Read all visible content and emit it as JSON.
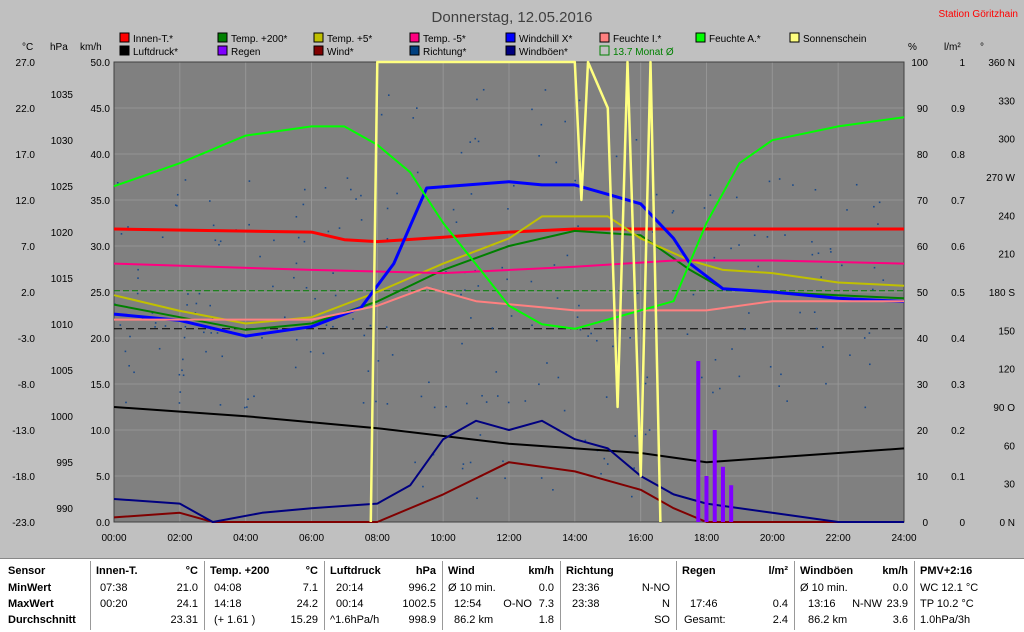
{
  "title": "Donnerstag, 12.05.2016",
  "station": "Station Göritzhain",
  "colors": {
    "bg": "#c0c0c0",
    "plot": "#808080",
    "innen": "#ff0000",
    "t200": "#008000",
    "t5": "#c0c000",
    "tm5": "#ff0080",
    "windchill": "#0000ff",
    "feuchteI": "#ff8080",
    "feuchteA": "#00ff00",
    "sonne": "#ffff80",
    "luftdruck": "#000000",
    "regen": "#8000ff",
    "wind": "#800000",
    "richtung": "#004080",
    "boeen": "#000080",
    "monat": "#008000"
  },
  "legend": [
    {
      "label": "Innen-T.*",
      "color": "#ff0000"
    },
    {
      "label": "Temp. +200*",
      "color": "#008000"
    },
    {
      "label": "Temp. +5*",
      "color": "#c0c000"
    },
    {
      "label": "Temp. -5*",
      "color": "#ff0080"
    },
    {
      "label": "Windchill X*",
      "color": "#0000ff"
    },
    {
      "label": "Feuchte I.*",
      "color": "#ff8080"
    },
    {
      "label": "Feuchte A.*",
      "color": "#00ff00"
    },
    {
      "label": "Sonnenschein",
      "color": "#ffff80"
    },
    {
      "label": "Luftdruck*",
      "color": "#000000"
    },
    {
      "label": "Regen",
      "color": "#8000ff"
    },
    {
      "label": "Wind*",
      "color": "#800000"
    },
    {
      "label": "Richtung*",
      "color": "#004080"
    },
    {
      "label": "Windböen*",
      "color": "#000080"
    },
    {
      "label": "13.7 Monat Ø",
      "color": "#008000"
    }
  ],
  "axes": {
    "units": {
      "c": "°C",
      "hpa": "hPa",
      "kmh": "km/h",
      "pct": "%",
      "lm2": "l/m²",
      "deg": "°"
    },
    "celsius": [
      "27.0",
      "22.0",
      "17.0",
      "12.0",
      "7.0",
      "2.0",
      "-3.0",
      "-8.0",
      "-13.0",
      "-18.0",
      "-23.0"
    ],
    "hpa": [
      "1035",
      "1030",
      "1025",
      "1020",
      "1015",
      "1010",
      "1005",
      "1000",
      "995",
      "990"
    ],
    "kmh": [
      "50.0",
      "45.0",
      "40.0",
      "35.0",
      "30.0",
      "25.0",
      "20.0",
      "15.0",
      "10.0",
      "5.0",
      "0.0"
    ],
    "pct": [
      "100",
      "90",
      "80",
      "70",
      "60",
      "50",
      "40",
      "30",
      "20",
      "10",
      "0"
    ],
    "lm2": [
      "1",
      "0.9",
      "0.8",
      "0.7",
      "0.6",
      "0.5",
      "0.4",
      "0.3",
      "0.2",
      "0.1",
      "0"
    ],
    "deg": [
      "360 N",
      "330",
      "300",
      "270 W",
      "240",
      "210",
      "180 S",
      "150",
      "120",
      "90 O",
      "60",
      "30",
      "0 N"
    ],
    "time": [
      "00:00",
      "02:00",
      "04:00",
      "06:00",
      "08:00",
      "10:00",
      "12:00",
      "14:00",
      "16:00",
      "18:00",
      "20:00",
      "22:00",
      "24:00"
    ]
  },
  "chart_data": {
    "type": "line",
    "title": "Donnerstag, 12.05.2016",
    "x_unit": "hour of day",
    "xlim": [
      0,
      24
    ],
    "series": [
      {
        "name": "Innen-T.*",
        "unit": "°C",
        "color": "#ff0000",
        "points": [
          [
            0,
            23.5
          ],
          [
            6,
            23.0
          ],
          [
            7,
            21.8
          ],
          [
            8,
            21.5
          ],
          [
            10,
            22.2
          ],
          [
            12,
            23.0
          ],
          [
            14,
            23.5
          ],
          [
            16,
            23.5
          ],
          [
            18,
            23.5
          ],
          [
            24,
            23.5
          ]
        ]
      },
      {
        "name": "Temp. +200*",
        "unit": "°C",
        "color": "#008000",
        "points": [
          [
            0,
            11.5
          ],
          [
            2,
            9.5
          ],
          [
            4,
            7.5
          ],
          [
            6,
            8.5
          ],
          [
            8,
            12
          ],
          [
            10,
            17
          ],
          [
            12,
            20.8
          ],
          [
            14,
            23.2
          ],
          [
            16,
            22.5
          ],
          [
            17.5,
            17
          ],
          [
            18.5,
            14
          ],
          [
            20,
            13.5
          ],
          [
            22,
            13
          ],
          [
            24,
            12.5
          ]
        ]
      },
      {
        "name": "Temp. +5*",
        "unit": "°C",
        "color": "#c0c000",
        "points": [
          [
            0,
            13
          ],
          [
            2,
            10.5
          ],
          [
            4,
            8.5
          ],
          [
            6,
            9.5
          ],
          [
            8,
            13.5
          ],
          [
            10,
            18
          ],
          [
            12,
            22
          ],
          [
            13,
            25.5
          ],
          [
            15,
            25.5
          ],
          [
            16,
            22
          ],
          [
            17.5,
            18.5
          ],
          [
            18.5,
            17
          ],
          [
            20,
            16.5
          ],
          [
            22,
            15
          ],
          [
            24,
            14.5
          ]
        ]
      },
      {
        "name": "Temp. -5*",
        "unit": "°C",
        "color": "#ff0080",
        "points": [
          [
            0,
            18
          ],
          [
            6,
            17
          ],
          [
            10,
            16.5
          ],
          [
            14,
            17.5
          ],
          [
            17,
            18.5
          ],
          [
            20,
            18.5
          ],
          [
            24,
            18
          ]
        ]
      },
      {
        "name": "Windchill X*",
        "unit": "°C",
        "color": "#0000ff",
        "points": [
          [
            0,
            10
          ],
          [
            2,
            9
          ],
          [
            4,
            6.5
          ],
          [
            6,
            8
          ],
          [
            7.5,
            11
          ],
          [
            8.5,
            18
          ],
          [
            9.5,
            30
          ],
          [
            12,
            31
          ],
          [
            13,
            30.5
          ],
          [
            14,
            30.5
          ],
          [
            15,
            29
          ],
          [
            16,
            27.5
          ],
          [
            17,
            22
          ],
          [
            17.5,
            18
          ],
          [
            18.5,
            14
          ],
          [
            20,
            13.5
          ],
          [
            22,
            12.5
          ],
          [
            24,
            12
          ]
        ]
      },
      {
        "name": "Feuchte I.*",
        "unit": "%",
        "color": "#ff8080",
        "points": [
          [
            0,
            44
          ],
          [
            6,
            44
          ],
          [
            8,
            47
          ],
          [
            9.5,
            51
          ],
          [
            11,
            48
          ],
          [
            14,
            46
          ],
          [
            16,
            46
          ],
          [
            18,
            46
          ],
          [
            20,
            48
          ],
          [
            24,
            48
          ]
        ]
      },
      {
        "name": "Feuchte A.*",
        "unit": "%",
        "color": "#00ff00",
        "points": [
          [
            0,
            73
          ],
          [
            2,
            78
          ],
          [
            4,
            84
          ],
          [
            6,
            86
          ],
          [
            7,
            86
          ],
          [
            8,
            82
          ],
          [
            9,
            76
          ],
          [
            10,
            65
          ],
          [
            11,
            56
          ],
          [
            12,
            47
          ],
          [
            13,
            43
          ],
          [
            14,
            42
          ],
          [
            15,
            44
          ],
          [
            16,
            46
          ],
          [
            17,
            48
          ],
          [
            18,
            65
          ],
          [
            19,
            78
          ],
          [
            20,
            83
          ],
          [
            22,
            86
          ],
          [
            24,
            88
          ]
        ]
      },
      {
        "name": "Luftdruck*",
        "unit": "hPa",
        "color": "#000000",
        "points": [
          [
            0,
            1002.5
          ],
          [
            4,
            1001.5
          ],
          [
            8,
            1000.2
          ],
          [
            12,
            998.5
          ],
          [
            16,
            997.5
          ],
          [
            18,
            996.5
          ],
          [
            20,
            997
          ],
          [
            22,
            997.5
          ],
          [
            24,
            998
          ]
        ]
      },
      {
        "name": "Wind*",
        "unit": "km/h",
        "color": "#800000",
        "points": [
          [
            0,
            0.5
          ],
          [
            2,
            1
          ],
          [
            3,
            0
          ],
          [
            8,
            0
          ],
          [
            10,
            3
          ],
          [
            12,
            6.5
          ],
          [
            14,
            5.5
          ],
          [
            16,
            3.5
          ],
          [
            17,
            1.5
          ],
          [
            18,
            0
          ],
          [
            24,
            0
          ]
        ]
      },
      {
        "name": "Windböen*",
        "unit": "km/h",
        "color": "#000080",
        "points": [
          [
            0,
            2.5
          ],
          [
            2,
            2
          ],
          [
            3,
            0
          ],
          [
            4.5,
            1
          ],
          [
            6,
            1.5
          ],
          [
            8,
            2
          ],
          [
            9,
            4
          ],
          [
            10,
            9
          ],
          [
            11,
            11
          ],
          [
            12,
            10
          ],
          [
            13,
            11
          ],
          [
            14,
            9
          ],
          [
            15,
            8
          ],
          [
            16,
            5
          ],
          [
            17,
            3
          ],
          [
            18,
            2
          ],
          [
            20,
            1
          ],
          [
            22,
            0
          ],
          [
            24,
            0
          ]
        ]
      },
      {
        "name": "Regen",
        "unit": "l/m²",
        "color": "#8000ff",
        "points": [
          [
            17.5,
            0
          ],
          [
            17.75,
            0.35
          ],
          [
            18,
            0.1
          ],
          [
            18.25,
            0.2
          ],
          [
            18.5,
            0.12
          ],
          [
            18.75,
            0.08
          ],
          [
            19,
            0
          ]
        ]
      },
      {
        "name": "Sonnenschein",
        "unit": "%",
        "color": "#ffff80",
        "points": [
          [
            7.8,
            0
          ],
          [
            8,
            100
          ],
          [
            14,
            100
          ],
          [
            14.2,
            70
          ],
          [
            14.4,
            100
          ],
          [
            15,
            90
          ],
          [
            15.3,
            25
          ],
          [
            15.6,
            100
          ],
          [
            16,
            10
          ],
          [
            16.3,
            100
          ],
          [
            16.6,
            0
          ]
        ]
      }
    ],
    "reference_lines": [
      {
        "name": "13.7 Monat Ø",
        "unit": "°C",
        "value": 13.7,
        "color": "#008000"
      },
      {
        "name": "Luftdruck Mittel",
        "unit": "hPa",
        "value": 1011,
        "color": "#000000"
      }
    ]
  },
  "stats": {
    "sensor": {
      "h": "Sensor",
      "min": "MinWert",
      "max": "MaxWert",
      "avg": "Durchschnitt"
    },
    "innen": {
      "h": "Innen-T.",
      "u": "°C",
      "min_t": "07:38",
      "min_v": "21.0",
      "max_t": "00:20",
      "max_v": "24.1",
      "avg": "23.31"
    },
    "temp200": {
      "h": "Temp. +200",
      "u": "°C",
      "min_t": "04:08",
      "min_v": "7.1",
      "max_t": "14:18",
      "max_v": "24.2",
      "avg_t": "(+ 1.61 )",
      "avg": "15.29"
    },
    "luftdruck": {
      "h": "Luftdruck",
      "u": "hPa",
      "min_t": "20:14",
      "min_v": "996.2",
      "max_t": "00:14",
      "max_v": "1002.5",
      "avg_t": "^1.6hPa/h",
      "avg": "998.9"
    },
    "wind": {
      "h": "Wind",
      "u": "km/h",
      "min_t": "Ø 10 min.",
      "min_v": "0.0",
      "max_t": "12:54",
      "max_d": "O-NO",
      "max_v": "7.3",
      "avg_t": "86.2 km",
      "avg": "1.8"
    },
    "richtung": {
      "h": "Richtung",
      "min_t": "23:36",
      "min_v": "N-NO",
      "max_t": "23:38",
      "max_v": "N",
      "avg": "SO"
    },
    "regen": {
      "h": "Regen",
      "u": "l/m²",
      "max_t": "17:46",
      "max_v": "0.4",
      "avg_t": "Gesamt:",
      "avg": "2.4"
    },
    "boeen": {
      "h": "Windböen",
      "u": "km/h",
      "min_t": "Ø 10 min.",
      "min_v": "0.0",
      "max_t": "13:16",
      "max_d": "N-NW",
      "max_v": "23.9",
      "avg_t": "86.2 km",
      "avg": "3.6"
    },
    "pmv": {
      "h": "PMV+2:16",
      "l1": "WC 12.1 °C",
      "l2": "TP 10.2 °C",
      "l3": "1.0hPa/3h"
    }
  }
}
